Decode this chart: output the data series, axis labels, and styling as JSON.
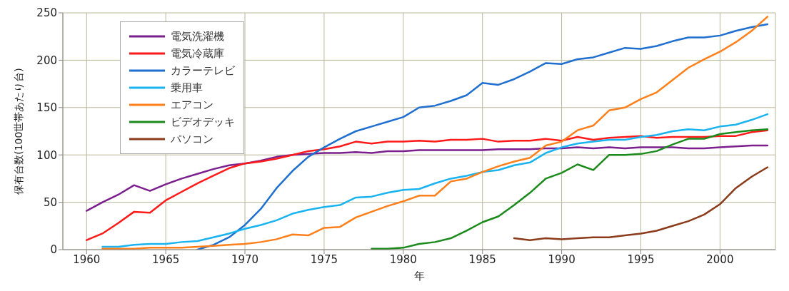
{
  "chart_data": {
    "type": "line",
    "xlabel": "年",
    "ylabel": "保有台数(100世帯あたり台)",
    "x": [
      1960,
      1961,
      1962,
      1963,
      1964,
      1965,
      1966,
      1967,
      1968,
      1969,
      1970,
      1971,
      1972,
      1973,
      1974,
      1975,
      1976,
      1977,
      1978,
      1979,
      1980,
      1981,
      1982,
      1983,
      1984,
      1985,
      1986,
      1987,
      1988,
      1989,
      1990,
      1991,
      1992,
      1993,
      1994,
      1995,
      1996,
      1997,
      1998,
      1999,
      2000,
      2001,
      2002,
      2003
    ],
    "xlim": [
      1958.5,
      2003.5
    ],
    "xticks": [
      1960,
      1965,
      1970,
      1975,
      1980,
      1985,
      1990,
      1995,
      2000
    ],
    "ylim": [
      0,
      250
    ],
    "yticks": [
      0,
      50,
      100,
      150,
      200,
      250
    ],
    "grid": true,
    "legend": "top left",
    "series": [
      {
        "name": "電気洗濯機",
        "color": "#7b1f8e",
        "values": [
          41,
          50,
          58,
          68,
          62,
          69,
          75,
          80,
          85,
          89,
          91,
          94,
          98,
          100,
          101,
          102,
          102,
          103,
          102,
          104,
          104,
          105,
          105,
          105,
          105,
          105,
          106,
          106,
          106,
          107,
          107,
          108,
          107,
          108,
          107,
          108,
          108,
          108,
          107,
          107,
          108,
          109,
          110,
          110
        ]
      },
      {
        "name": "電気冷蔵庫",
        "color": "#ff1a1a",
        "values": [
          10,
          17,
          28,
          40,
          39,
          52,
          61,
          70,
          78,
          86,
          91,
          93,
          96,
          100,
          104,
          106,
          109,
          114,
          112,
          114,
          114,
          115,
          114,
          116,
          116,
          117,
          114,
          115,
          115,
          117,
          115,
          119,
          116,
          118,
          119,
          120,
          118,
          119,
          119,
          119,
          120,
          120,
          124,
          126
        ]
      },
      {
        "name": "カラーテレビ",
        "color": "#1f6fd0",
        "values": [
          null,
          null,
          null,
          null,
          null,
          null,
          null,
          0,
          5,
          13,
          26,
          43,
          65,
          83,
          98,
          108,
          117,
          125,
          130,
          135,
          140,
          150,
          152,
          157,
          163,
          176,
          174,
          180,
          188,
          197,
          196,
          201,
          203,
          208,
          213,
          212,
          215,
          220,
          224,
          224,
          226,
          231,
          235,
          238
        ]
      },
      {
        "name": "乗用車",
        "color": "#19b4f0",
        "values": [
          null,
          3,
          3,
          5,
          6,
          6,
          8,
          9,
          13,
          17,
          22,
          26,
          31,
          38,
          42,
          45,
          47,
          55,
          56,
          60,
          63,
          64,
          70,
          75,
          78,
          82,
          84,
          89,
          92,
          102,
          108,
          112,
          114,
          116,
          116,
          119,
          121,
          125,
          127,
          126,
          130,
          132,
          137,
          143
        ]
      },
      {
        "name": "エアコン",
        "color": "#ff7f1a",
        "values": [
          null,
          1,
          1,
          1,
          2,
          2,
          2,
          3,
          4,
          5,
          6,
          8,
          11,
          16,
          15,
          23,
          24,
          34,
          40,
          46,
          51,
          57,
          57,
          72,
          75,
          82,
          88,
          93,
          97,
          110,
          114,
          126,
          131,
          147,
          150,
          159,
          166,
          179,
          192,
          201,
          209,
          219,
          231,
          246
        ]
      },
      {
        "name": "ビデオデッキ",
        "color": "#1a8a1a",
        "values": [
          null,
          null,
          null,
          null,
          null,
          null,
          null,
          null,
          null,
          null,
          null,
          null,
          null,
          null,
          null,
          null,
          null,
          null,
          1,
          1,
          2,
          6,
          8,
          12,
          20,
          29,
          35,
          47,
          60,
          75,
          81,
          90,
          84,
          100,
          100,
          101,
          104,
          111,
          117,
          117,
          122,
          124,
          126,
          127
        ]
      },
      {
        "name": "パソコン",
        "color": "#8b3a1a",
        "values": [
          null,
          null,
          null,
          null,
          null,
          null,
          null,
          null,
          null,
          null,
          null,
          null,
          null,
          null,
          null,
          null,
          null,
          null,
          null,
          null,
          null,
          null,
          null,
          null,
          null,
          null,
          null,
          12,
          10,
          12,
          11,
          12,
          13,
          13,
          15,
          17,
          20,
          25,
          30,
          37,
          48,
          65,
          77,
          87
        ]
      }
    ]
  }
}
